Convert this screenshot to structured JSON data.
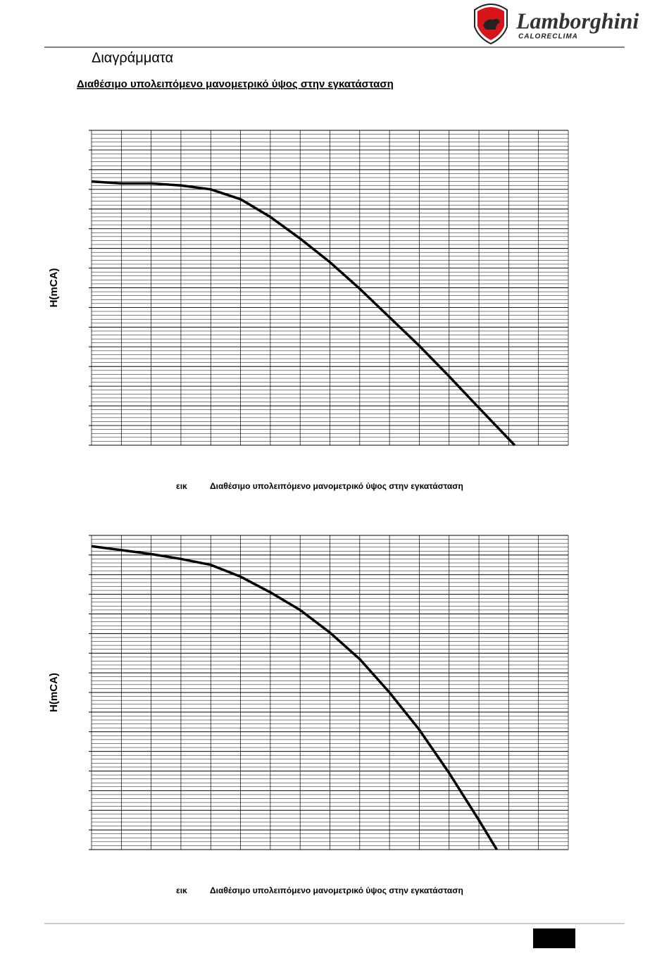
{
  "header": {
    "brand": "Lamborghini",
    "subbrand": "CALORECLIMA"
  },
  "title": "Διαγράμματα",
  "subtitle": "Διαθέσιμο υπολειπόμενο μανομετρικό ύψος στην εγκατάσταση",
  "chart_data": [
    {
      "type": "line",
      "y_label": "H(mCA)",
      "figure_label": "εικ",
      "caption": "Διαθέσιμο υπολειπόμενο μανομετρικό ύψος στην εγκατάσταση",
      "xlim": [
        0,
        16
      ],
      "ylim": [
        0,
        16
      ],
      "grid": true,
      "color": "#000000",
      "x": [
        0,
        1,
        2,
        3,
        4,
        5,
        6,
        7,
        8,
        9,
        10,
        11,
        12,
        13,
        14.2
      ],
      "values": [
        13.4,
        13.3,
        13.3,
        13.2,
        13.0,
        12.5,
        11.6,
        10.5,
        9.3,
        7.95,
        6.5,
        5.05,
        3.5,
        1.9,
        0
      ]
    },
    {
      "type": "line",
      "y_label": "H(mCA)",
      "figure_label": "εικ",
      "caption": "Διαθέσιμο υπολειπόμενο μανομετρικό ύψος στην εγκατάσταση",
      "xlim": [
        0,
        16
      ],
      "ylim": [
        0,
        16
      ],
      "grid": true,
      "color": "#000000",
      "x": [
        0,
        1,
        2,
        3,
        4,
        5,
        6,
        7,
        8,
        9,
        10,
        11,
        12,
        13,
        13.6
      ],
      "values": [
        15.45,
        15.25,
        15.05,
        14.8,
        14.5,
        13.9,
        13.1,
        12.2,
        11.05,
        9.7,
        8.0,
        6.1,
        3.9,
        1.5,
        0
      ]
    }
  ]
}
